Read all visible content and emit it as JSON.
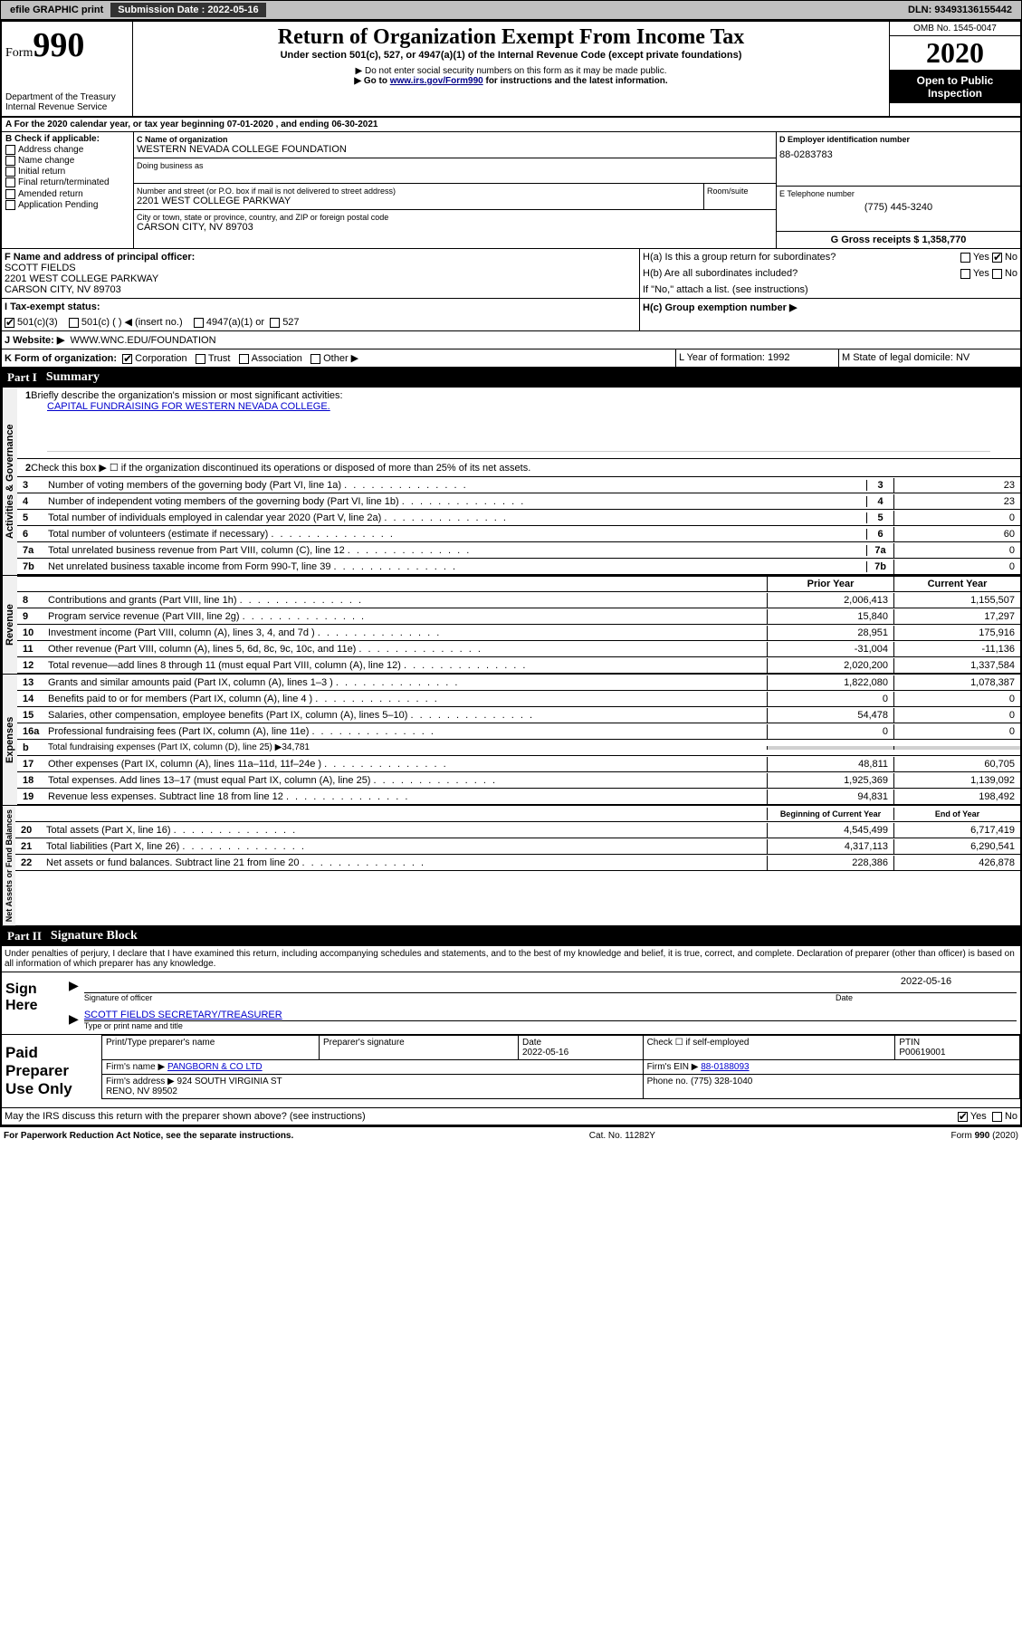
{
  "topbar": {
    "efile": "efile GRAPHIC print",
    "submission_label": "Submission Date : 2022-05-16",
    "dln": "DLN: 93493136155442"
  },
  "header": {
    "form_label": "Form",
    "form_num": "990",
    "dept": "Department of the Treasury\nInternal Revenue Service",
    "title": "Return of Organization Exempt From Income Tax",
    "sub": "Under section 501(c), 527, or 4947(a)(1) of the Internal Revenue Code (except private foundations)",
    "note1": "▶ Do not enter social security numbers on this form as it may be made public.",
    "note2_pre": "▶ Go to ",
    "note2_link": "www.irs.gov/Form990",
    "note2_post": " for instructions and the latest information.",
    "omb": "OMB No. 1545-0047",
    "year": "2020",
    "inspect": "Open to Public Inspection"
  },
  "rowA": "A For the 2020 calendar year, or tax year beginning 07-01-2020     , and ending 06-30-2021",
  "check_labels": {
    "b": "B Check if applicable:",
    "addr": "Address change",
    "name": "Name change",
    "initial": "Initial return",
    "final": "Final return/terminated",
    "amended": "Amended return",
    "app": "Application Pending"
  },
  "org": {
    "c_label": "C Name of organization",
    "name": "WESTERN NEVADA COLLEGE FOUNDATION",
    "dba_label": "Doing business as",
    "addr_label": "Number and street (or P.O. box if mail is not delivered to street address)",
    "room_label": "Room/suite",
    "addr": "2201 WEST COLLEGE PARKWAY",
    "city_label": "City or town, state or province, country, and ZIP or foreign postal code",
    "city": "CARSON CITY, NV  89703",
    "d_label": "D Employer identification number",
    "ein": "88-0283783",
    "e_label": "E Telephone number",
    "phone": "(775) 445-3240",
    "g_label": "G Gross receipts $ 1,358,770",
    "f_label": "F Name and address of principal officer:",
    "officer": "SCOTT FIELDS\n2201 WEST COLLEGE PARKWAY\nCARSON CITY, NV  89703",
    "ha": "H(a)  Is this a group return for subordinates?",
    "hb": "H(b)  Are all subordinates included?",
    "hno": "If \"No,\" attach a list. (see instructions)",
    "hc": "H(c)  Group exemption number ▶",
    "yes": "Yes",
    "no": "No"
  },
  "status": {
    "i": "I  Tax-exempt status:",
    "c3": "501(c)(3)",
    "c": "501(c) (   ) ◀ (insert no.)",
    "a1": "4947(a)(1) or",
    "527": "527",
    "j": "J  Website: ▶",
    "website": "WWW.WNC.EDU/FOUNDATION",
    "k": "K Form of organization:",
    "corp": "Corporation",
    "trust": "Trust",
    "assoc": "Association",
    "other": "Other ▶",
    "l": "L Year of formation: 1992",
    "m": "M State of legal domicile: NV"
  },
  "part1": {
    "header": "Part I",
    "title": "Summary",
    "q1": "Briefly describe the organization's mission or most significant activities:",
    "q1_ans": "CAPITAL FUNDRAISING FOR WESTERN NEVADA COLLEGE.",
    "q2": "Check this box ▶ ☐  if the organization discontinued its operations or disposed of more than 25% of its net assets.",
    "lines": [
      {
        "n": "3",
        "t": "Number of voting members of the governing body (Part VI, line 1a)",
        "v": "23"
      },
      {
        "n": "4",
        "t": "Number of independent voting members of the governing body (Part VI, line 1b)",
        "v": "23"
      },
      {
        "n": "5",
        "t": "Total number of individuals employed in calendar year 2020 (Part V, line 2a)",
        "v": "0"
      },
      {
        "n": "6",
        "t": "Total number of volunteers (estimate if necessary)",
        "v": "60"
      },
      {
        "n": "7a",
        "t": "Total unrelated business revenue from Part VIII, column (C), line 12",
        "v": "0"
      },
      {
        "n": "7b",
        "t": "Net unrelated business taxable income from Form 990-T, line 39",
        "v": "0"
      }
    ],
    "col_prior": "Prior Year",
    "col_current": "Current Year",
    "revenue": [
      {
        "n": "8",
        "t": "Contributions and grants (Part VIII, line 1h)",
        "p": "2,006,413",
        "c": "1,155,507"
      },
      {
        "n": "9",
        "t": "Program service revenue (Part VIII, line 2g)",
        "p": "15,840",
        "c": "17,297"
      },
      {
        "n": "10",
        "t": "Investment income (Part VIII, column (A), lines 3, 4, and 7d )",
        "p": "28,951",
        "c": "175,916"
      },
      {
        "n": "11",
        "t": "Other revenue (Part VIII, column (A), lines 5, 6d, 8c, 9c, 10c, and 11e)",
        "p": "-31,004",
        "c": "-11,136"
      },
      {
        "n": "12",
        "t": "Total revenue—add lines 8 through 11 (must equal Part VIII, column (A), line 12)",
        "p": "2,020,200",
        "c": "1,337,584"
      }
    ],
    "expenses": [
      {
        "n": "13",
        "t": "Grants and similar amounts paid (Part IX, column (A), lines 1–3 )",
        "p": "1,822,080",
        "c": "1,078,387"
      },
      {
        "n": "14",
        "t": "Benefits paid to or for members (Part IX, column (A), line 4 )",
        "p": "0",
        "c": "0"
      },
      {
        "n": "15",
        "t": "Salaries, other compensation, employee benefits (Part IX, column (A), lines 5–10)",
        "p": "54,478",
        "c": "0"
      },
      {
        "n": "16a",
        "t": "Professional fundraising fees (Part IX, column (A), line 11e)",
        "p": "0",
        "c": "0"
      }
    ],
    "exp_b": {
      "n": "b",
      "t": "Total fundraising expenses (Part IX, column (D), line 25) ▶34,781"
    },
    "expenses2": [
      {
        "n": "17",
        "t": "Other expenses (Part IX, column (A), lines 11a–11d, 11f–24e )",
        "p": "48,811",
        "c": "60,705"
      },
      {
        "n": "18",
        "t": "Total expenses. Add lines 13–17 (must equal Part IX, column (A), line 25)",
        "p": "1,925,369",
        "c": "1,139,092"
      },
      {
        "n": "19",
        "t": "Revenue less expenses. Subtract line 18 from line 12",
        "p": "94,831",
        "c": "198,492"
      }
    ],
    "col_begin": "Beginning of Current Year",
    "col_end": "End of Year",
    "assets": [
      {
        "n": "20",
        "t": "Total assets (Part X, line 16)",
        "p": "4,545,499",
        "c": "6,717,419"
      },
      {
        "n": "21",
        "t": "Total liabilities (Part X, line 26)",
        "p": "4,317,113",
        "c": "6,290,541"
      },
      {
        "n": "22",
        "t": "Net assets or fund balances. Subtract line 21 from line 20",
        "p": "228,386",
        "c": "426,878"
      }
    ],
    "vlabels": {
      "gov": "Activities & Governance",
      "rev": "Revenue",
      "exp": "Expenses",
      "net": "Net Assets or Fund Balances"
    }
  },
  "part2": {
    "header": "Part II",
    "title": "Signature Block",
    "decl": "Under penalties of perjury, I declare that I have examined this return, including accompanying schedules and statements, and to the best of my knowledge and belief, it is true, correct, and complete. Declaration of preparer (other than officer) is based on all information of which preparer has any knowledge.",
    "sign_here": "Sign Here",
    "sig_officer": "Signature of officer",
    "date": "Date",
    "sig_date": "2022-05-16",
    "officer_name": "SCOTT FIELDS  SECRETARY/TREASURER",
    "type_name": "Type or print name and title",
    "paid": "Paid Preparer Use Only",
    "prep_name_h": "Print/Type preparer's name",
    "prep_sig_h": "Preparer's signature",
    "date_h": "Date",
    "prep_date": "2022-05-16",
    "check_self": "Check ☐ if self-employed",
    "ptin_h": "PTIN",
    "ptin": "P00619001",
    "firm_name_h": "Firm's name      ▶",
    "firm_name": "PANGBORN & CO LTD",
    "firm_ein_h": "Firm's EIN ▶",
    "firm_ein": "88-0188093",
    "firm_addr_h": "Firm's address ▶",
    "firm_addr": "924 SOUTH VIRGINIA ST\nRENO, NV  89502",
    "phone_h": "Phone no. (775) 328-1040",
    "discuss": "May the IRS discuss this return with the preparer shown above? (see instructions)"
  },
  "footer": {
    "pra": "For Paperwork Reduction Act Notice, see the separate instructions.",
    "cat": "Cat. No. 11282Y",
    "form": "Form 990 (2020)"
  }
}
